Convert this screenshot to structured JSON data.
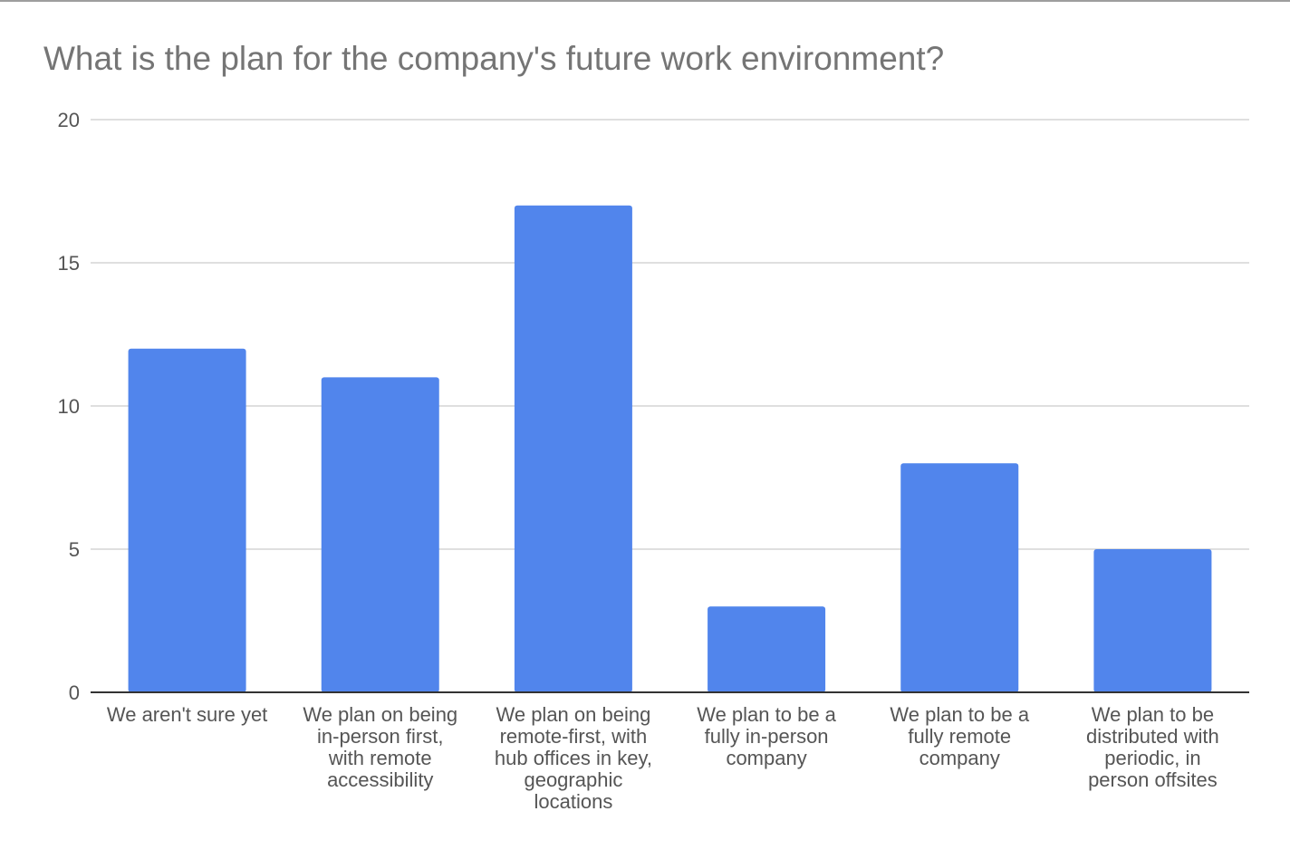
{
  "chart_data": {
    "type": "bar",
    "title": "What is the plan for the company's future work environment?",
    "xlabel": "",
    "ylabel": "",
    "ylim": [
      0,
      20
    ],
    "yticks": [
      0,
      5,
      10,
      15,
      20
    ],
    "grid": true,
    "legend": "none",
    "bar_color": "#5185EC",
    "categories": [
      [
        "We aren't sure yet"
      ],
      [
        "We plan on being",
        "in-person first,",
        "with remote",
        "accessibility"
      ],
      [
        "We plan on being",
        "remote-first, with",
        "hub offices in key,",
        "geographic",
        "locations"
      ],
      [
        "We plan to be a",
        "fully in-person",
        "company"
      ],
      [
        "We plan to be a",
        "fully remote",
        "company"
      ],
      [
        "We plan to be",
        "distributed with",
        "periodic, in",
        "person offsites"
      ]
    ],
    "values": [
      12,
      11,
      17,
      3,
      8,
      5
    ]
  },
  "colors": {
    "bar": "#5185EC",
    "grid": "#cccccc",
    "axis": "#333333",
    "text": "#555555",
    "title": "#757575"
  }
}
